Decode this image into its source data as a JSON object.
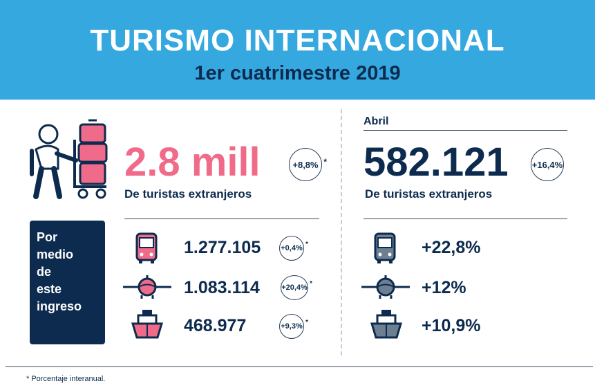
{
  "header": {
    "title": "TURISMO INTERNACIONAL",
    "subtitle": "1er cuatrimestre 2019"
  },
  "left": {
    "total": "2.8 mill",
    "total_badge": "+8,8%",
    "total_asterisk": "*",
    "total_caption": "De turistas extranjeros",
    "via_label_lines": [
      "Por",
      "medio",
      "de",
      "este",
      "ingreso"
    ],
    "rows": [
      {
        "icon": "bus-icon",
        "value": "1.277.105",
        "badge": "+0,4%",
        "asterisk": "*"
      },
      {
        "icon": "plane-icon",
        "value": "1.083.114",
        "badge": "+20,4%",
        "asterisk": "*"
      },
      {
        "icon": "ship-icon",
        "value": "468.977",
        "badge": "+9,3%",
        "asterisk": "*"
      }
    ]
  },
  "right": {
    "month_label": "Abril",
    "total": "582.121",
    "total_badge": "+16,4%",
    "total_caption": "De turistas extranjeros",
    "rows": [
      {
        "icon": "bus-icon",
        "value": "+22,8%"
      },
      {
        "icon": "plane-icon",
        "value": "+12%"
      },
      {
        "icon": "ship-icon",
        "value": "+10,9%"
      }
    ]
  },
  "footnote": "* Porcentaje interanual.",
  "colors": {
    "header_bg": "#35a8e0",
    "navy": "#0d2b4e",
    "accent_pink": "#f06b8a"
  }
}
